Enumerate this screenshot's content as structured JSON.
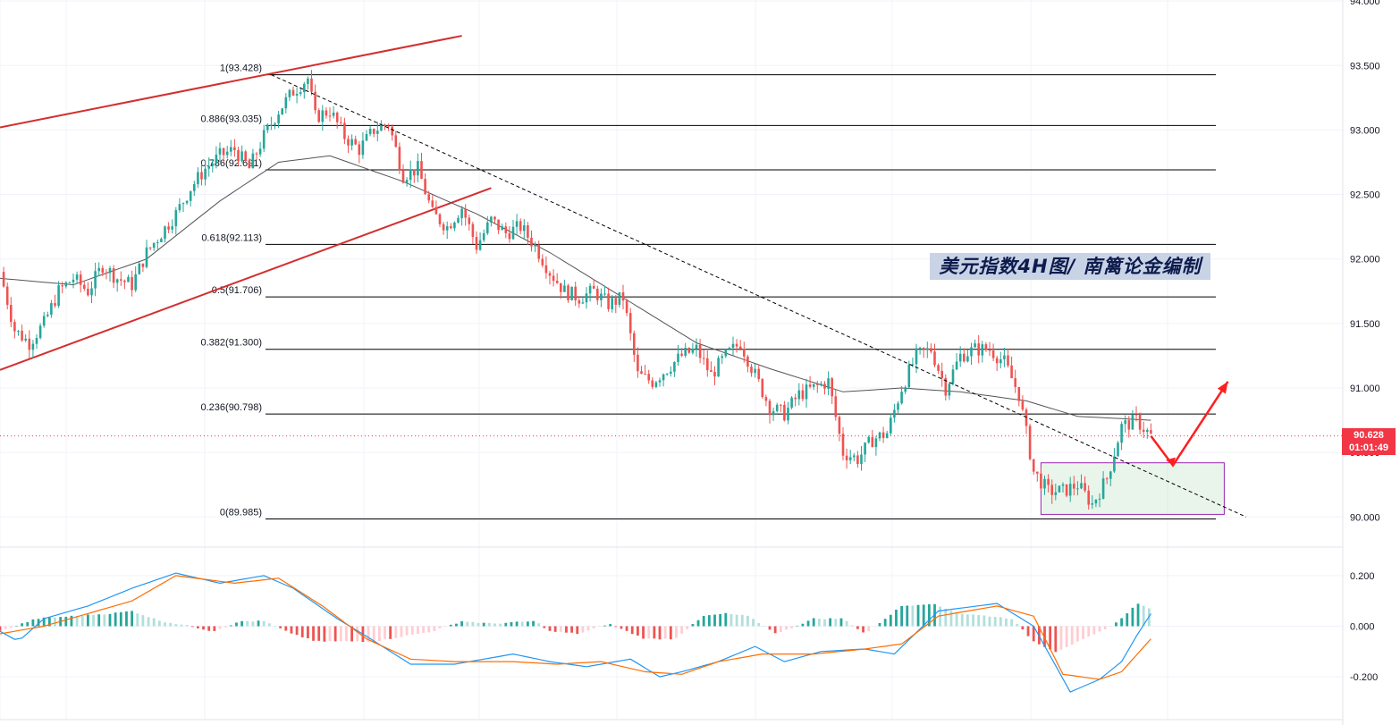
{
  "chart_data": [
    {
      "type": "candlestick",
      "title": "美元指数4H图/ 南篱论金编制",
      "y_axis": {
        "ticks": [
          "94.000",
          "93.500",
          "93.000",
          "92.500",
          "92.000",
          "91.500",
          "91.000",
          "90.500",
          "90.000"
        ],
        "tick_values": [
          94.0,
          93.5,
          93.0,
          92.5,
          92.0,
          91.5,
          91.0,
          90.5,
          90.0
        ],
        "ylim": [
          89.9,
          94.0
        ]
      },
      "current_price": {
        "value": "90.628",
        "countdown": "01:01:49",
        "price": 90.628
      },
      "fibonacci_levels": [
        {
          "label": "1(93.428)",
          "value": 93.428
        },
        {
          "label": "0.886(93.035)",
          "value": 93.035
        },
        {
          "label": "0.786(92.691)",
          "value": 92.691
        },
        {
          "label": "0.618(92.113)",
          "value": 92.113
        },
        {
          "label": "0.5(91.706)",
          "value": 91.706
        },
        {
          "label": "0.382(91.300)",
          "value": 91.3
        },
        {
          "label": "0.236(90.798)",
          "value": 90.798
        },
        {
          "label": "0(89.985)",
          "value": 89.985
        }
      ],
      "price_path": [
        [
          0,
          91.9
        ],
        [
          4,
          91.45
        ],
        [
          8,
          91.35
        ],
        [
          12,
          91.5
        ],
        [
          16,
          91.75
        ],
        [
          20,
          91.85
        ],
        [
          24,
          91.75
        ],
        [
          28,
          91.95
        ],
        [
          32,
          91.85
        ],
        [
          36,
          91.8
        ],
        [
          40,
          92.05
        ],
        [
          44,
          92.2
        ],
        [
          48,
          92.35
        ],
        [
          52,
          92.55
        ],
        [
          56,
          92.7
        ],
        [
          60,
          92.8
        ],
        [
          64,
          92.85
        ],
        [
          68,
          92.7
        ],
        [
          72,
          92.95
        ],
        [
          76,
          93.15
        ],
        [
          80,
          93.3
        ],
        [
          84,
          93.4
        ],
        [
          86,
          93.1
        ],
        [
          90,
          93.15
        ],
        [
          94,
          92.95
        ],
        [
          98,
          92.85
        ],
        [
          102,
          93.0
        ],
        [
          106,
          93.05
        ],
        [
          110,
          92.65
        ],
        [
          114,
          92.7
        ],
        [
          118,
          92.35
        ],
        [
          122,
          92.25
        ],
        [
          126,
          92.4
        ],
        [
          130,
          92.1
        ],
        [
          134,
          92.3
        ],
        [
          138,
          92.2
        ],
        [
          142,
          92.25
        ],
        [
          146,
          92.1
        ],
        [
          150,
          91.9
        ],
        [
          154,
          91.75
        ],
        [
          158,
          91.7
        ],
        [
          162,
          91.75
        ],
        [
          166,
          91.65
        ],
        [
          170,
          91.7
        ],
        [
          174,
          91.1
        ],
        [
          178,
          91.05
        ],
        [
          182,
          91.15
        ],
        [
          186,
          91.25
        ],
        [
          190,
          91.3
        ],
        [
          194,
          91.1
        ],
        [
          198,
          91.25
        ],
        [
          202,
          91.35
        ],
        [
          206,
          91.1
        ],
        [
          210,
          90.85
        ],
        [
          214,
          90.8
        ],
        [
          218,
          90.95
        ],
        [
          222,
          91.0
        ],
        [
          226,
          91.05
        ],
        [
          230,
          90.5
        ],
        [
          234,
          90.45
        ],
        [
          238,
          90.6
        ],
        [
          242,
          90.65
        ],
        [
          246,
          91.0
        ],
        [
          250,
          91.25
        ],
        [
          254,
          91.3
        ],
        [
          258,
          91.0
        ],
        [
          262,
          91.25
        ],
        [
          266,
          91.3
        ],
        [
          270,
          91.3
        ],
        [
          274,
          91.2
        ],
        [
          278,
          90.95
        ],
        [
          282,
          90.35
        ],
        [
          286,
          90.2
        ],
        [
          290,
          90.2
        ],
        [
          294,
          90.25
        ],
        [
          298,
          90.1
        ],
        [
          302,
          90.3
        ],
        [
          306,
          90.7
        ],
        [
          310,
          90.75
        ],
        [
          314,
          90.628
        ]
      ],
      "moving_average_path": [
        [
          0,
          91.85
        ],
        [
          20,
          91.8
        ],
        [
          40,
          92.0
        ],
        [
          60,
          92.45
        ],
        [
          76,
          92.75
        ],
        [
          90,
          92.8
        ],
        [
          110,
          92.6
        ],
        [
          130,
          92.35
        ],
        [
          150,
          92.05
        ],
        [
          170,
          91.7
        ],
        [
          190,
          91.35
        ],
        [
          210,
          91.15
        ],
        [
          230,
          90.97
        ],
        [
          246,
          91.0
        ],
        [
          262,
          90.97
        ],
        [
          280,
          90.9
        ],
        [
          294,
          90.78
        ],
        [
          314,
          90.75
        ]
      ],
      "trend_channel": [
        {
          "from": [
            0,
            93.02
          ],
          "to": [
            126,
            93.73
          ]
        },
        {
          "from": [
            0,
            91.14
          ],
          "to": [
            134,
            92.55
          ]
        }
      ],
      "dashed_trendline": {
        "from": [
          74,
          93.428
        ],
        "to": [
          340,
          90.0
        ]
      },
      "consolidation_box": {
        "x": [
          284,
          334
        ],
        "y": [
          90.02,
          90.42
        ]
      },
      "projection_arrow": [
        [
          314,
          90.628
        ],
        [
          320,
          90.4
        ],
        [
          335,
          91.05
        ]
      ]
    },
    {
      "type": "macd",
      "y_axis": {
        "ticks": [
          "0.200",
          "0.000",
          "-0.200"
        ],
        "tick_values": [
          0.2,
          0.0,
          -0.2
        ],
        "ylim": [
          -0.3,
          0.3
        ]
      },
      "macd_line": [
        [
          0,
          -0.02
        ],
        [
          5,
          -0.06
        ],
        [
          12,
          0.03
        ],
        [
          24,
          0.08
        ],
        [
          36,
          0.15
        ],
        [
          48,
          0.21
        ],
        [
          60,
          0.17
        ],
        [
          72,
          0.2
        ],
        [
          80,
          0.15
        ],
        [
          92,
          0.03
        ],
        [
          100,
          -0.04
        ],
        [
          112,
          -0.15
        ],
        [
          124,
          -0.15
        ],
        [
          140,
          -0.11
        ],
        [
          150,
          -0.14
        ],
        [
          160,
          -0.16
        ],
        [
          172,
          -0.13
        ],
        [
          180,
          -0.2
        ],
        [
          186,
          -0.18
        ],
        [
          196,
          -0.14
        ],
        [
          206,
          -0.08
        ],
        [
          214,
          -0.14
        ],
        [
          224,
          -0.1
        ],
        [
          236,
          -0.09
        ],
        [
          244,
          -0.11
        ],
        [
          256,
          0.06
        ],
        [
          272,
          0.09
        ],
        [
          282,
          0.0
        ],
        [
          292,
          -0.26
        ],
        [
          300,
          -0.21
        ],
        [
          306,
          -0.14
        ],
        [
          310,
          -0.04
        ],
        [
          314,
          0.05
        ]
      ],
      "signal_line": [
        [
          0,
          -0.03
        ],
        [
          12,
          0.0
        ],
        [
          24,
          0.05
        ],
        [
          36,
          0.1
        ],
        [
          48,
          0.2
        ],
        [
          64,
          0.17
        ],
        [
          76,
          0.19
        ],
        [
          88,
          0.08
        ],
        [
          100,
          -0.05
        ],
        [
          112,
          -0.13
        ],
        [
          124,
          -0.14
        ],
        [
          140,
          -0.14
        ],
        [
          152,
          -0.15
        ],
        [
          164,
          -0.14
        ],
        [
          176,
          -0.18
        ],
        [
          186,
          -0.19
        ],
        [
          196,
          -0.14
        ],
        [
          208,
          -0.11
        ],
        [
          222,
          -0.11
        ],
        [
          236,
          -0.09
        ],
        [
          246,
          -0.07
        ],
        [
          256,
          0.04
        ],
        [
          272,
          0.08
        ],
        [
          282,
          0.04
        ],
        [
          290,
          -0.19
        ],
        [
          300,
          -0.21
        ],
        [
          306,
          -0.18
        ],
        [
          314,
          -0.05
        ]
      ],
      "histogram_envelope": [
        [
          0,
          -0.02
        ],
        [
          10,
          0.03
        ],
        [
          20,
          0.04
        ],
        [
          30,
          0.05
        ],
        [
          36,
          0.06
        ],
        [
          44,
          0.02
        ],
        [
          52,
          0.0
        ],
        [
          58,
          -0.02
        ],
        [
          66,
          0.02
        ],
        [
          72,
          0.02
        ],
        [
          78,
          -0.02
        ],
        [
          86,
          -0.06
        ],
        [
          94,
          -0.06
        ],
        [
          102,
          -0.06
        ],
        [
          110,
          -0.04
        ],
        [
          118,
          -0.02
        ],
        [
          126,
          0.02
        ],
        [
          134,
          0.01
        ],
        [
          146,
          0.02
        ],
        [
          150,
          -0.02
        ],
        [
          158,
          -0.03
        ],
        [
          166,
          0.01
        ],
        [
          176,
          -0.05
        ],
        [
          184,
          -0.05
        ],
        [
          192,
          0.04
        ],
        [
          198,
          0.05
        ],
        [
          204,
          0.04
        ],
        [
          212,
          -0.03
        ],
        [
          222,
          0.03
        ],
        [
          230,
          0.03
        ],
        [
          236,
          -0.03
        ],
        [
          246,
          0.08
        ],
        [
          254,
          0.09
        ],
        [
          262,
          0.05
        ],
        [
          270,
          0.04
        ],
        [
          276,
          0.03
        ],
        [
          282,
          -0.06
        ],
        [
          288,
          -0.1
        ],
        [
          296,
          -0.05
        ],
        [
          302,
          -0.01
        ],
        [
          306,
          0.03
        ],
        [
          310,
          0.09
        ],
        [
          314,
          0.07
        ]
      ]
    }
  ]
}
